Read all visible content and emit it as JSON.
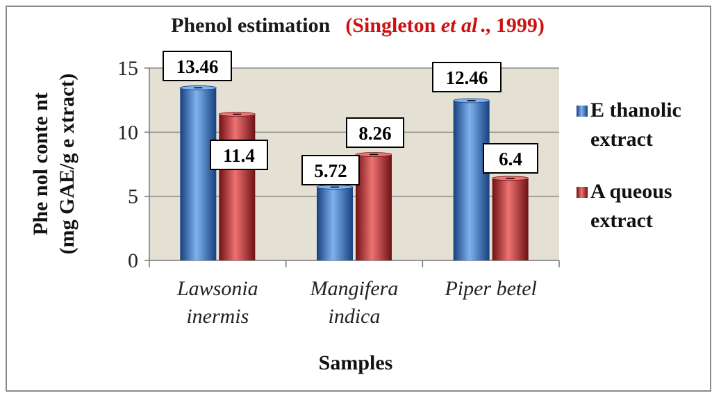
{
  "chart_data": {
    "type": "bar",
    "title": "Phenol estimation",
    "title_citation": {
      "prefix": "(Singleton ",
      "italic": "et al",
      "suffix": "., 1999)"
    },
    "xlabel": "Samples",
    "ylabel": [
      "Phe nol conte nt",
      "(mg GAE/g e xtract)"
    ],
    "categories": [
      [
        "Lawsonia",
        "inermis"
      ],
      [
        "Mangifera",
        "indica"
      ],
      [
        "Piper betel"
      ]
    ],
    "series": [
      {
        "name": [
          "E thanolic",
          "extract"
        ],
        "values": [
          13.46,
          5.72,
          12.46
        ],
        "labels": [
          "13.46",
          "5.72",
          "12.46"
        ],
        "color": "#2e6fc7",
        "light": "#7fb3ee",
        "dark": "#173f7e"
      },
      {
        "name": [
          "A queous",
          "extract"
        ],
        "values": [
          11.4,
          8.26,
          6.4
        ],
        "labels": [
          "11.4",
          "8.26",
          "6.4"
        ],
        "color": "#c0282b",
        "light": "#ee7272",
        "dark": "#6e1114"
      }
    ],
    "ylim": [
      0,
      15
    ],
    "yticks": [
      0,
      5,
      10,
      15
    ],
    "grid": true,
    "legend_position": "right",
    "plot_background": "#e5e0d4"
  }
}
